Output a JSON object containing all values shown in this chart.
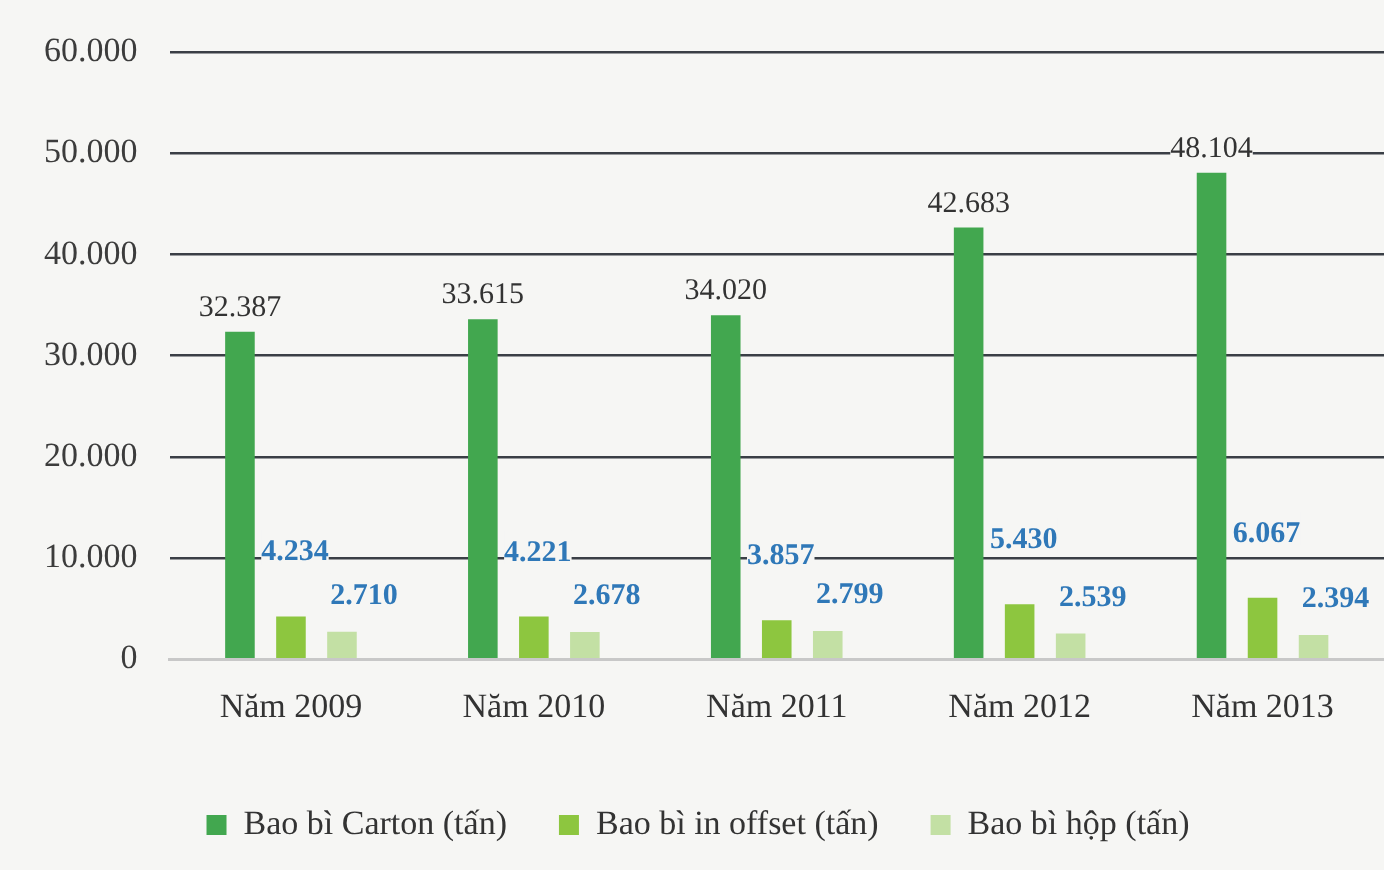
{
  "chart_data": {
    "type": "bar",
    "categories": [
      "Năm 2009",
      "Năm 2010",
      "Năm 2011",
      "Năm 2012",
      "Năm 2013"
    ],
    "series": [
      {
        "name": "Bao bì Carton (tấn)",
        "color": "#42a74f",
        "values": [
          32387,
          33615,
          34020,
          42683,
          48104
        ],
        "value_labels": [
          "32.387",
          "33.615",
          "34.020",
          "42.683",
          "48.104"
        ]
      },
      {
        "name": "Bao bì in offset (tấn)",
        "color": "#8dc63f",
        "values": [
          4234,
          4221,
          3857,
          5430,
          6067
        ],
        "value_labels": [
          "4.234",
          "4.221",
          "3.857",
          "5.430",
          "6.067"
        ]
      },
      {
        "name": "Bao bì hộp (tấn)",
        "color": "#c3e0a4",
        "values": [
          2710,
          2678,
          2799,
          2539,
          2394
        ],
        "value_labels": [
          "2.710",
          "2.678",
          "2.799",
          "2.539",
          "2.394"
        ]
      }
    ],
    "ylim": [
      0,
      60000
    ],
    "yticks": [
      {
        "value": 0,
        "label": "0"
      },
      {
        "value": 10000,
        "label": "10.000"
      },
      {
        "value": 20000,
        "label": "20.000"
      },
      {
        "value": 30000,
        "label": "30.000"
      },
      {
        "value": 40000,
        "label": "40.000"
      },
      {
        "value": 50000,
        "label": "50.000"
      },
      {
        "value": 60000,
        "label": "60.000"
      }
    ],
    "grid": "y",
    "legend": "bottom"
  }
}
